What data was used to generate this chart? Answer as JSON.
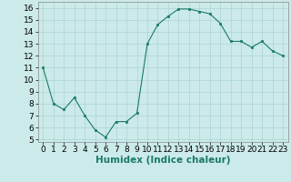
{
  "x": [
    0,
    1,
    2,
    3,
    4,
    5,
    6,
    7,
    8,
    9,
    10,
    11,
    12,
    13,
    14,
    15,
    16,
    17,
    18,
    19,
    20,
    21,
    22,
    23
  ],
  "y": [
    11,
    8,
    7.5,
    8.5,
    7,
    5.8,
    5.2,
    6.5,
    6.5,
    7.2,
    13,
    14.6,
    15.3,
    15.9,
    15.9,
    15.7,
    15.5,
    14.7,
    13.2,
    13.2,
    12.7,
    13.2,
    12.4,
    12
  ],
  "line_color": "#1a7a65",
  "marker_color": "#1a7a65",
  "bg_color": "#cceaea",
  "grid_color": "#aad4d4",
  "xlabel": "Humidex (Indice chaleur)",
  "ylim": [
    4.8,
    16.5
  ],
  "xlim": [
    -0.5,
    23.5
  ],
  "yticks": [
    5,
    6,
    7,
    8,
    9,
    10,
    11,
    12,
    13,
    14,
    15,
    16
  ],
  "xticks": [
    0,
    1,
    2,
    3,
    4,
    5,
    6,
    7,
    8,
    9,
    10,
    11,
    12,
    13,
    14,
    15,
    16,
    17,
    18,
    19,
    20,
    21,
    22,
    23
  ],
  "xlabel_fontsize": 7.5,
  "tick_fontsize": 6.5
}
